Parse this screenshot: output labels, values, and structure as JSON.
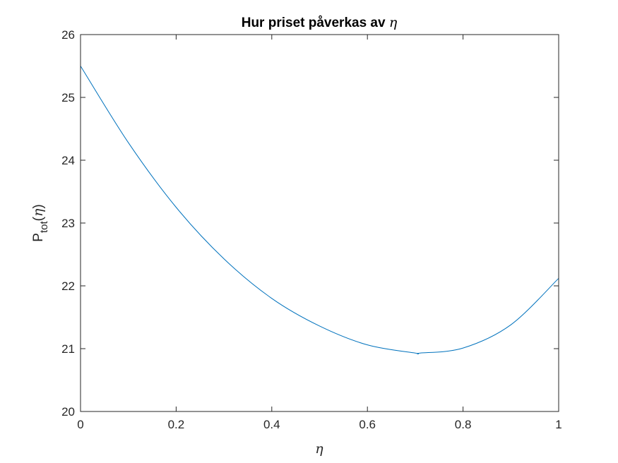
{
  "chart_data": {
    "type": "line",
    "title": {
      "text": "Hur priset påverkas av",
      "symbol": "η"
    },
    "xlabel": {
      "symbol": "η"
    },
    "ylabel": {
      "base": "P",
      "subscript": "tot",
      "open": "(",
      "symbol": "η",
      "close": ")"
    },
    "xlim": [
      0,
      1
    ],
    "ylim": [
      20,
      26
    ],
    "x_ticks": [
      0,
      0.2,
      0.4,
      0.6,
      0.8,
      1
    ],
    "x_tick_labels": [
      "0",
      "0.2",
      "0.4",
      "0.6",
      "0.8",
      "1"
    ],
    "y_ticks": [
      20,
      21,
      22,
      23,
      24,
      25,
      26
    ],
    "y_tick_labels": [
      "20",
      "21",
      "22",
      "23",
      "24",
      "25",
      "26"
    ],
    "grid": false,
    "series": [
      {
        "color": "#0072BD",
        "x": [
          0,
          0.1,
          0.2,
          0.3,
          0.4,
          0.5,
          0.6,
          0.7,
          0.71,
          0.8,
          0.9,
          1.0
        ],
        "y": [
          25.5,
          24.28,
          23.25,
          22.43,
          21.8,
          21.36,
          21.06,
          20.93,
          20.93,
          21.01,
          21.38,
          22.12
        ]
      }
    ]
  }
}
